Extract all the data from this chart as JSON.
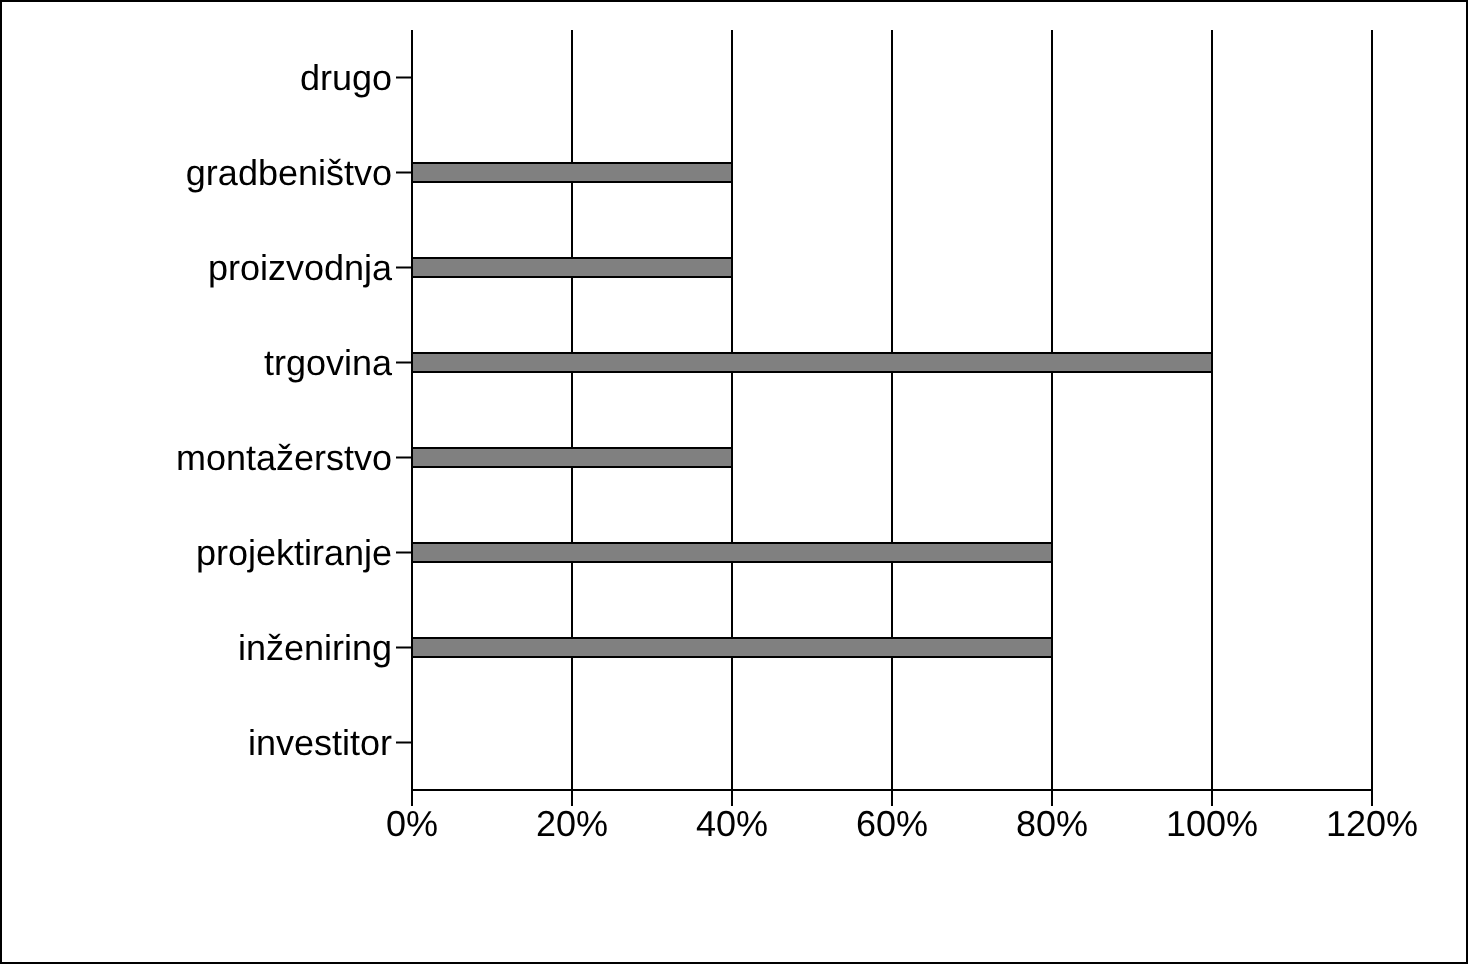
{
  "chart_data": {
    "type": "bar",
    "orientation": "horizontal",
    "categories": [
      "drugo",
      "gradbeništvo",
      "proizvodnja",
      "trgovina",
      "montažerstvo",
      "projektiranje",
      "inženiring",
      "investitor"
    ],
    "values": [
      0,
      40,
      40,
      100,
      40,
      80,
      80,
      0
    ],
    "color": "#808080",
    "xlim": [
      0,
      120
    ],
    "xticks": [
      {
        "value": 0,
        "label": "0%"
      },
      {
        "value": 20,
        "label": "20%"
      },
      {
        "value": 40,
        "label": "40%"
      },
      {
        "value": 60,
        "label": "60%"
      },
      {
        "value": 80,
        "label": "80%"
      },
      {
        "value": 100,
        "label": "100%"
      },
      {
        "value": 120,
        "label": "120%"
      }
    ],
    "grid": "x",
    "legend": false
  }
}
